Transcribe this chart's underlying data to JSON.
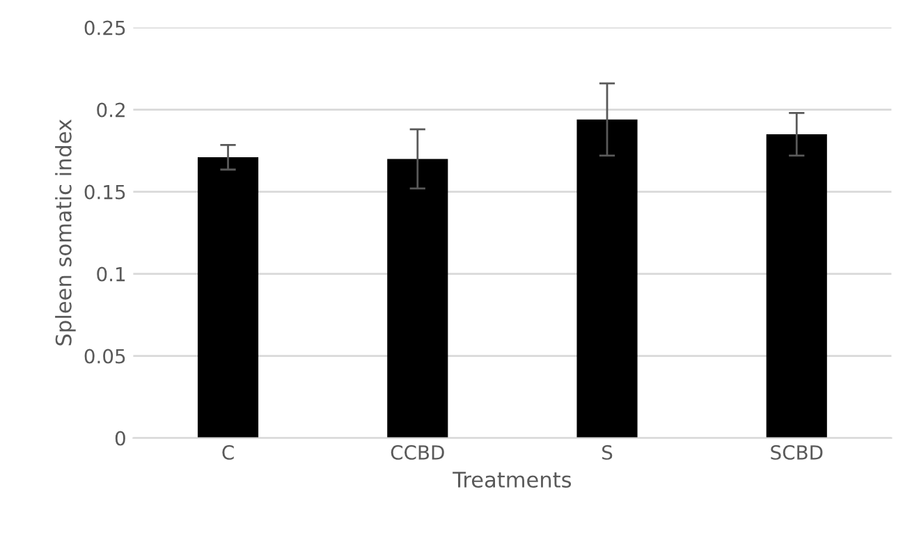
{
  "chart_data": {
    "type": "bar",
    "xlabel": "Treatments",
    "ylabel": "Spleen somatic index",
    "categories": [
      "C",
      "CCBD",
      "S",
      "SCBD"
    ],
    "values": [
      0.171,
      0.17,
      0.194,
      0.185
    ],
    "errors": [
      0.0075,
      0.018,
      0.022,
      0.013
    ],
    "color": "#000000",
    "ylim": [
      0,
      0.25
    ],
    "yticks": [
      {
        "value": 0,
        "label": "0"
      },
      {
        "value": 0.05,
        "label": "0.05"
      },
      {
        "value": 0.1,
        "label": "0.1"
      },
      {
        "value": 0.15,
        "label": "0.15"
      },
      {
        "value": 0.2,
        "label": "0.2"
      },
      {
        "value": 0.25,
        "label": "0.25"
      }
    ],
    "grid": "y"
  }
}
